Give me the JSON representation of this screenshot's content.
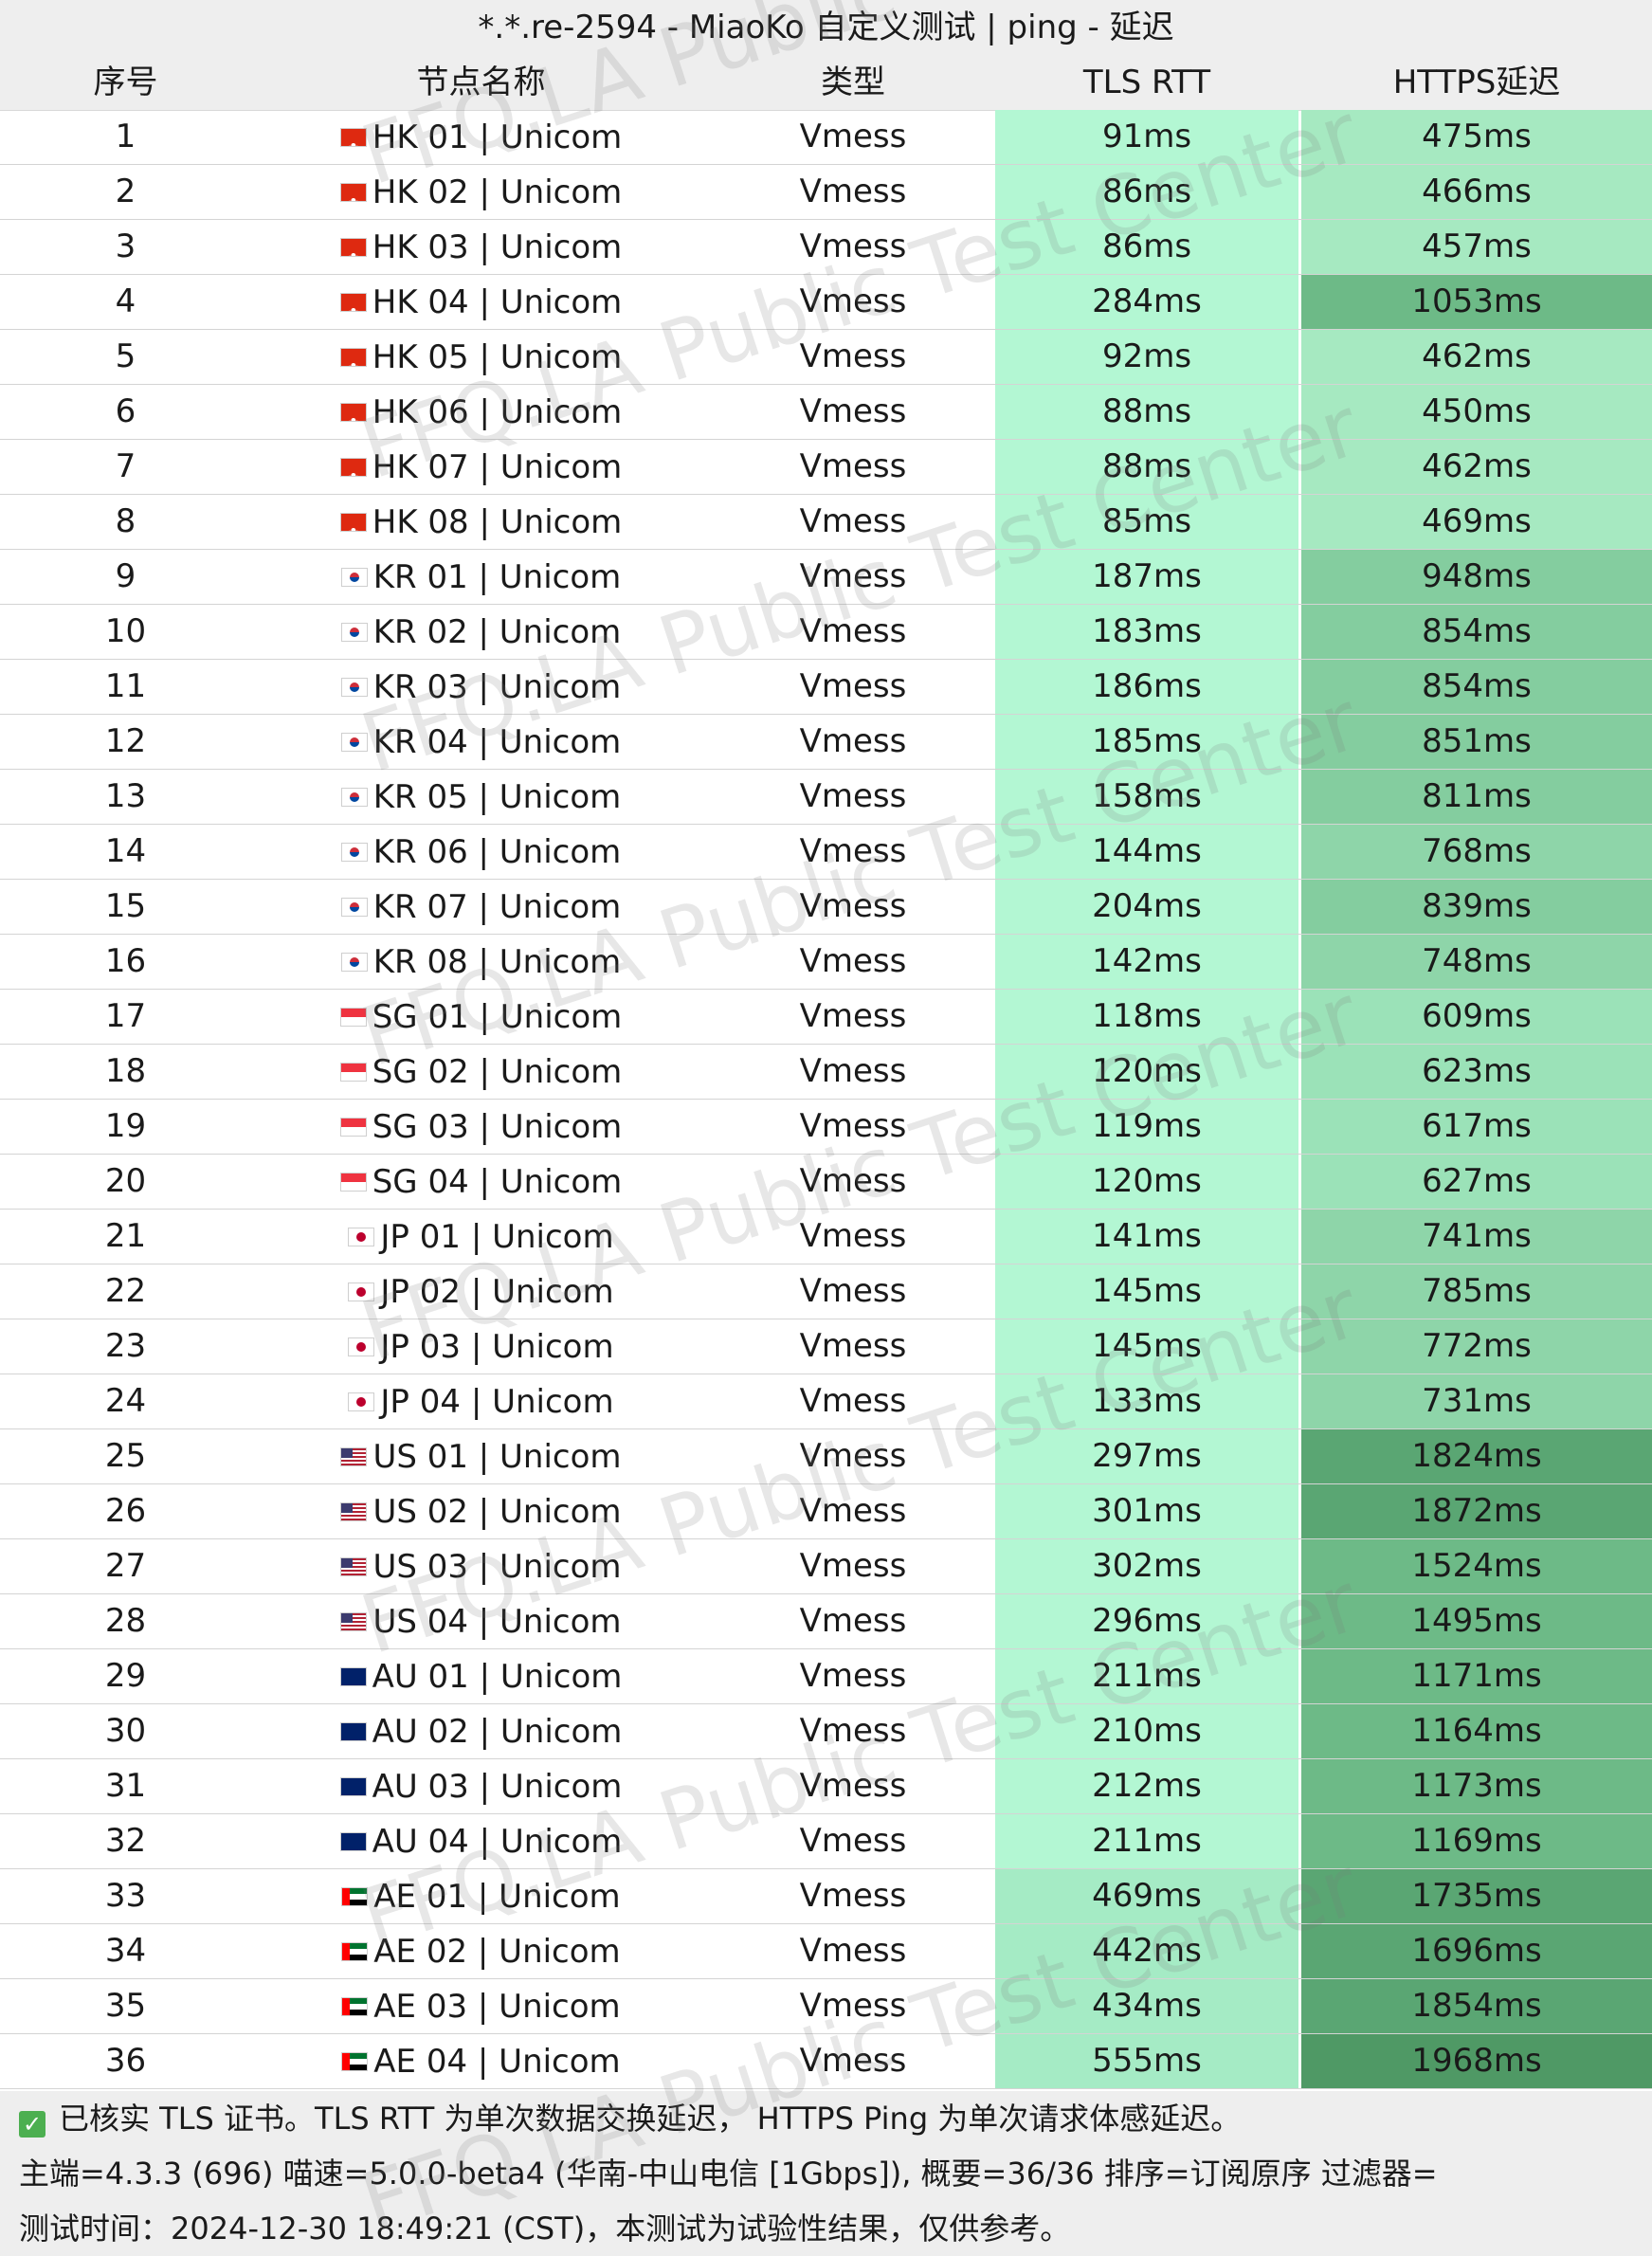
{
  "title": "*.*.re-2594 - MiaoKo 自定义测试 | ping - 延迟",
  "headers": {
    "idx": "序号",
    "name": "节点名称",
    "type": "类型",
    "tls": "TLS RTT",
    "https": "HTTPS延迟"
  },
  "rows": [
    {
      "idx": "1",
      "flag": "hk-flag-icon",
      "name": "HK 01 | Unicom",
      "type": "Vmess",
      "tls": "91ms",
      "https": "475ms"
    },
    {
      "idx": "2",
      "flag": "hk-flag-icon",
      "name": "HK 02 | Unicom",
      "type": "Vmess",
      "tls": "86ms",
      "https": "466ms"
    },
    {
      "idx": "3",
      "flag": "hk-flag-icon",
      "name": "HK 03 | Unicom",
      "type": "Vmess",
      "tls": "86ms",
      "https": "457ms"
    },
    {
      "idx": "4",
      "flag": "hk-flag-icon",
      "name": "HK 04 | Unicom",
      "type": "Vmess",
      "tls": "284ms",
      "https": "1053ms"
    },
    {
      "idx": "5",
      "flag": "hk-flag-icon",
      "name": "HK 05 | Unicom",
      "type": "Vmess",
      "tls": "92ms",
      "https": "462ms"
    },
    {
      "idx": "6",
      "flag": "hk-flag-icon",
      "name": "HK 06 | Unicom",
      "type": "Vmess",
      "tls": "88ms",
      "https": "450ms"
    },
    {
      "idx": "7",
      "flag": "hk-flag-icon",
      "name": "HK 07 | Unicom",
      "type": "Vmess",
      "tls": "88ms",
      "https": "462ms"
    },
    {
      "idx": "8",
      "flag": "hk-flag-icon",
      "name": "HK 08 | Unicom",
      "type": "Vmess",
      "tls": "85ms",
      "https": "469ms"
    },
    {
      "idx": "9",
      "flag": "kr-flag-icon",
      "name": "KR 01 | Unicom",
      "type": "Vmess",
      "tls": "187ms",
      "https": "948ms"
    },
    {
      "idx": "10",
      "flag": "kr-flag-icon",
      "name": "KR 02 | Unicom",
      "type": "Vmess",
      "tls": "183ms",
      "https": "854ms"
    },
    {
      "idx": "11",
      "flag": "kr-flag-icon",
      "name": "KR 03 | Unicom",
      "type": "Vmess",
      "tls": "186ms",
      "https": "854ms"
    },
    {
      "idx": "12",
      "flag": "kr-flag-icon",
      "name": "KR 04 | Unicom",
      "type": "Vmess",
      "tls": "185ms",
      "https": "851ms"
    },
    {
      "idx": "13",
      "flag": "kr-flag-icon",
      "name": "KR 05 | Unicom",
      "type": "Vmess",
      "tls": "158ms",
      "https": "811ms"
    },
    {
      "idx": "14",
      "flag": "kr-flag-icon",
      "name": "KR 06 | Unicom",
      "type": "Vmess",
      "tls": "144ms",
      "https": "768ms"
    },
    {
      "idx": "15",
      "flag": "kr-flag-icon",
      "name": "KR 07 | Unicom",
      "type": "Vmess",
      "tls": "204ms",
      "https": "839ms"
    },
    {
      "idx": "16",
      "flag": "kr-flag-icon",
      "name": "KR 08 | Unicom",
      "type": "Vmess",
      "tls": "142ms",
      "https": "748ms"
    },
    {
      "idx": "17",
      "flag": "sg-flag-icon",
      "name": "SG 01 | Unicom",
      "type": "Vmess",
      "tls": "118ms",
      "https": "609ms"
    },
    {
      "idx": "18",
      "flag": "sg-flag-icon",
      "name": "SG 02 | Unicom",
      "type": "Vmess",
      "tls": "120ms",
      "https": "623ms"
    },
    {
      "idx": "19",
      "flag": "sg-flag-icon",
      "name": "SG 03 | Unicom",
      "type": "Vmess",
      "tls": "119ms",
      "https": "617ms"
    },
    {
      "idx": "20",
      "flag": "sg-flag-icon",
      "name": "SG 04 | Unicom",
      "type": "Vmess",
      "tls": "120ms",
      "https": "627ms"
    },
    {
      "idx": "21",
      "flag": "jp-flag-icon",
      "name": "JP 01 | Unicom",
      "type": "Vmess",
      "tls": "141ms",
      "https": "741ms"
    },
    {
      "idx": "22",
      "flag": "jp-flag-icon",
      "name": "JP 02 | Unicom",
      "type": "Vmess",
      "tls": "145ms",
      "https": "785ms"
    },
    {
      "idx": "23",
      "flag": "jp-flag-icon",
      "name": "JP 03 | Unicom",
      "type": "Vmess",
      "tls": "145ms",
      "https": "772ms"
    },
    {
      "idx": "24",
      "flag": "jp-flag-icon",
      "name": "JP 04 | Unicom",
      "type": "Vmess",
      "tls": "133ms",
      "https": "731ms"
    },
    {
      "idx": "25",
      "flag": "us-flag-icon",
      "name": "US 01 | Unicom",
      "type": "Vmess",
      "tls": "297ms",
      "https": "1824ms"
    },
    {
      "idx": "26",
      "flag": "us-flag-icon",
      "name": "US 02 | Unicom",
      "type": "Vmess",
      "tls": "301ms",
      "https": "1872ms"
    },
    {
      "idx": "27",
      "flag": "us-flag-icon",
      "name": "US 03 | Unicom",
      "type": "Vmess",
      "tls": "302ms",
      "https": "1524ms"
    },
    {
      "idx": "28",
      "flag": "us-flag-icon",
      "name": "US 04 | Unicom",
      "type": "Vmess",
      "tls": "296ms",
      "https": "1495ms"
    },
    {
      "idx": "29",
      "flag": "au-flag-icon",
      "name": "AU 01 | Unicom",
      "type": "Vmess",
      "tls": "211ms",
      "https": "1171ms"
    },
    {
      "idx": "30",
      "flag": "au-flag-icon",
      "name": "AU 02 | Unicom",
      "type": "Vmess",
      "tls": "210ms",
      "https": "1164ms"
    },
    {
      "idx": "31",
      "flag": "au-flag-icon",
      "name": "AU 03 | Unicom",
      "type": "Vmess",
      "tls": "212ms",
      "https": "1173ms"
    },
    {
      "idx": "32",
      "flag": "au-flag-icon",
      "name": "AU 04 | Unicom",
      "type": "Vmess",
      "tls": "211ms",
      "https": "1169ms"
    },
    {
      "idx": "33",
      "flag": "ae-flag-icon",
      "name": "AE 01 | Unicom",
      "type": "Vmess",
      "tls": "469ms",
      "https": "1735ms"
    },
    {
      "idx": "34",
      "flag": "ae-flag-icon",
      "name": "AE 02 | Unicom",
      "type": "Vmess",
      "tls": "442ms",
      "https": "1696ms"
    },
    {
      "idx": "35",
      "flag": "ae-flag-icon",
      "name": "AE 03 | Unicom",
      "type": "Vmess",
      "tls": "434ms",
      "https": "1854ms"
    },
    {
      "idx": "36",
      "flag": "ae-flag-icon",
      "name": "AE 04 | Unicom",
      "type": "Vmess",
      "tls": "555ms",
      "https": "1968ms"
    }
  ],
  "colors": {
    "header_bg": "#eeeeee",
    "tls_scale": [
      "#b3f7d3",
      "#a5ebc5"
    ],
    "https_scale": [
      "#a6e9c1",
      "#9be2b8",
      "#8ed5a9",
      "#84cd9f",
      "#6dba87",
      "#5aa673",
      "#4f9965"
    ]
  },
  "footer": {
    "check_icon": "check-icon",
    "line1": "已核实 TLS 证书。TLS RTT 为单次数据交换延迟， HTTPS Ping 为单次请求体感延迟。",
    "line2": "主端=4.3.3 (696) 喵速=5.0.0-beta4 (华南-中山电信 [1Gbps]), 概要=36/36 排序=订阅原序 过滤器=",
    "line3": "测试时间：2024-12-30 18:49:21 (CST)，本测试为试验性结果，仅供参考。"
  },
  "watermark": "FFQ.LA Public Test Center"
}
